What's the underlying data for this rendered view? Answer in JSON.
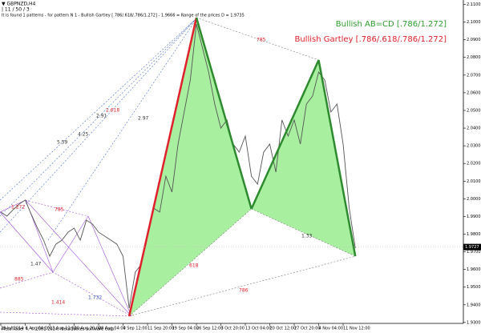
{
  "chart_data": {
    "type": "line",
    "symbol": "▼ GBPNZD,H4",
    "subtitle": "| 11 / 50 / 3",
    "info": "It is found 1 patterns  -  for pattern N 1 - Bullish Gartley [.786/.618/.786/1.272] - 1.9666 = Range of the prices D = 1.9735",
    "legend": [
      {
        "name": "Bullish AB=CD [.786/1.272]",
        "color": "#2e9a2e"
      },
      {
        "name": "Bullish Gartley [.786/.618/.786/1.272]",
        "color": "#e0202a"
      }
    ],
    "footer": "MetaTrader 4, © 2001-2014, MetaQuotes Software Corp.",
    "current_price": {
      "value": 1.9727,
      "label": "1.9727"
    },
    "categories": [
      "29 Jul 2014",
      null,
      null,
      null,
      "6 Aug 04:00",
      null,
      null,
      null,
      "13 Aug 12:00",
      null,
      null,
      null,
      "20 Aug 20:00",
      null,
      null,
      null,
      "28 Aug 04:00",
      null,
      null,
      null,
      "4 Sep 12:00",
      null,
      null,
      null,
      "11 Sep 20:00",
      null,
      null,
      null,
      "19 Sep 04:00",
      null,
      null,
      null,
      "26 Sep 12:00",
      null,
      null,
      null,
      "3 Oct 20:00",
      null,
      null,
      null,
      "13 Oct 04:00",
      null,
      null,
      null,
      "20 Oct 12:00",
      null,
      null,
      null,
      "27 Oct 20:00",
      null,
      null,
      null,
      "4 Nov 04:00",
      null,
      null,
      null,
      "11 Nov 12:00",
      null,
      null
    ],
    "series": [
      {
        "name": "GBPNZD",
        "color": "#555555",
        "values": [
          1.9925,
          1.9902,
          1.9938,
          1.997,
          1.9993,
          1.9911,
          1.9834,
          1.9766,
          1.9675,
          1.9743,
          1.9766,
          1.9811,
          1.9834,
          1.9766,
          1.9879,
          1.9857,
          1.9811,
          1.9789,
          1.9766,
          1.9743,
          1.9675,
          1.9381,
          1.9585,
          1.963,
          1.9811,
          1.9947,
          1.9925,
          2.0128,
          2.0038,
          2.031,
          2.0491,
          2.0672,
          2.0989,
          2.0853,
          2.0717,
          2.0536,
          2.04,
          2.0446,
          2.031,
          2.0264,
          2.0355,
          2.0128,
          2.0083,
          2.0264,
          2.031,
          2.0151,
          2.0446,
          2.0355,
          2.0446,
          2.031,
          2.0536,
          2.0581,
          2.0717,
          2.0672,
          2.0491,
          2.0536,
          2.031,
          1.9947,
          1.9721
        ]
      }
    ],
    "pattern": {
      "x": [
        21,
        32,
        41,
        52,
        58
      ],
      "prices": [
        1.9336,
        2.1025,
        1.9943,
        2.0785,
        1.9675
      ],
      "fill": "#a8f0a0",
      "line_color": "#2e8a2e",
      "xa_color": "#e0202a"
    },
    "annotations": [
      {
        "text": "785",
        "color": "#e0202a"
      },
      {
        "text": "1.33",
        "color": "#333333"
      },
      {
        "text": "618",
        "color": "#e0202a"
      },
      {
        "text": "786",
        "color": "#e0202a"
      },
      {
        "text": "2.618",
        "color": "#e0202a"
      },
      {
        "text": "2.91",
        "color": "#333333"
      },
      {
        "text": "2.97",
        "color": "#333333"
      },
      {
        "text": "4.25",
        "color": "#333333"
      },
      {
        "text": "5.59",
        "color": "#333333"
      },
      {
        "text": "1.272",
        "color": "#e0202a"
      },
      {
        "text": "785",
        "color": "#e0202a"
      },
      {
        "text": "1.47",
        "color": "#333333"
      },
      {
        "text": "885",
        "color": "#e0202a"
      },
      {
        "text": "1.414",
        "color": "#e0202a"
      },
      {
        "text": "1.732",
        "color": "#3050c0"
      }
    ],
    "ylim": [
      1.9295,
      2.1125
    ],
    "yticks": [
      {
        "value": 1.93,
        "label": "1.9300"
      },
      {
        "value": 1.94,
        "label": "1.9400"
      },
      {
        "value": 1.95,
        "label": "1.9500"
      },
      {
        "value": 1.96,
        "label": "1.9600"
      },
      {
        "value": 1.97,
        "label": "1.9700"
      },
      {
        "value": 1.98,
        "label": "1.9800"
      },
      {
        "value": 1.99,
        "label": "1.9900"
      },
      {
        "value": 2.0,
        "label": "2.0000"
      },
      {
        "value": 2.01,
        "label": "2.0100"
      },
      {
        "value": 2.02,
        "label": "2.0200"
      },
      {
        "value": 2.03,
        "label": "2.0300"
      },
      {
        "value": 2.04,
        "label": "2.0400"
      },
      {
        "value": 2.05,
        "label": "2.0500"
      },
      {
        "value": 2.06,
        "label": "2.0600"
      },
      {
        "value": 2.07,
        "label": "2.0700"
      },
      {
        "value": 2.08,
        "label": "2.0800"
      },
      {
        "value": 2.09,
        "label": "2.0900"
      },
      {
        "value": 2.1,
        "label": "2.1000"
      },
      {
        "value": 2.11,
        "label": "2.1100"
      }
    ]
  }
}
